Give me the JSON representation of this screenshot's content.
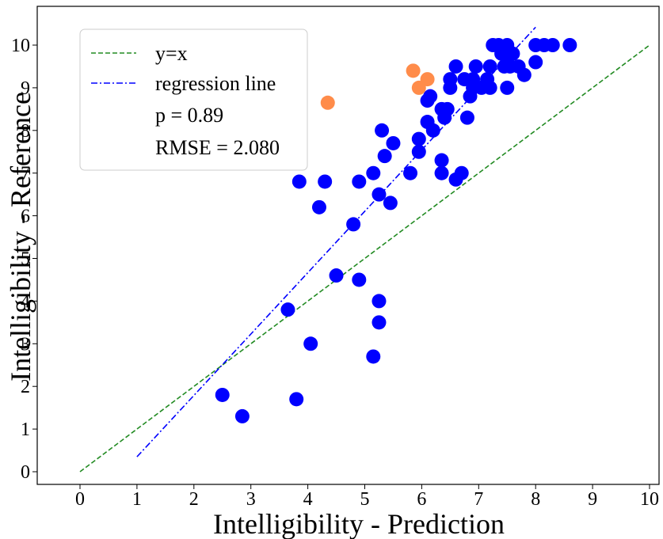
{
  "chart_data": {
    "type": "scatter",
    "xlabel": "Intelligibility - Prediction",
    "ylabel": "Intelligibility - Reference",
    "xlim": [
      0,
      10
    ],
    "ylim": [
      0,
      10
    ],
    "xticks": [
      "0",
      "1",
      "2",
      "3",
      "4",
      "5",
      "6",
      "7",
      "8",
      "9",
      "10"
    ],
    "yticks": [
      "0",
      "1",
      "2",
      "3",
      "4",
      "5",
      "6",
      "7",
      "8",
      "9",
      "10"
    ],
    "grid": false,
    "legend_position": "top-left",
    "legend": [
      {
        "label": "y=x",
        "style": "dashed",
        "color": "#228B22"
      },
      {
        "label": "regression line",
        "style": "dashdot",
        "color": "#0000FF"
      },
      {
        "label": "p = 0.89"
      },
      {
        "label": "RMSE = 2.080"
      }
    ],
    "lines": [
      {
        "label": "y=x",
        "color": "#228B22",
        "style": "dashed",
        "x": [
          0,
          10
        ],
        "y": [
          0,
          10
        ]
      },
      {
        "label": "regression line",
        "color": "#0000FF",
        "style": "dashdot",
        "x": [
          1.0,
          8.0
        ],
        "y": [
          0.35,
          10.42
        ]
      }
    ],
    "series": [
      {
        "color": "#0000FF",
        "points": [
          [
            2.5,
            1.8
          ],
          [
            2.85,
            1.3
          ],
          [
            3.8,
            1.7
          ],
          [
            4.05,
            3.0
          ],
          [
            3.65,
            3.8
          ],
          [
            5.15,
            2.7
          ],
          [
            5.25,
            3.5
          ],
          [
            5.25,
            4.0
          ],
          [
            4.5,
            4.6
          ],
          [
            4.9,
            4.5
          ],
          [
            4.8,
            5.8
          ],
          [
            4.2,
            6.2
          ],
          [
            3.85,
            6.8
          ],
          [
            4.3,
            6.8
          ],
          [
            4.9,
            6.8
          ],
          [
            5.15,
            7.0
          ],
          [
            5.25,
            6.5
          ],
          [
            5.45,
            6.3
          ],
          [
            5.35,
            7.4
          ],
          [
            5.5,
            7.7
          ],
          [
            5.3,
            8.0
          ],
          [
            5.8,
            7.0
          ],
          [
            5.95,
            7.5
          ],
          [
            5.95,
            7.8
          ],
          [
            6.1,
            8.2
          ],
          [
            6.1,
            8.7
          ],
          [
            6.15,
            8.8
          ],
          [
            6.2,
            8.0
          ],
          [
            6.35,
            8.5
          ],
          [
            6.4,
            8.3
          ],
          [
            6.45,
            8.5
          ],
          [
            6.35,
            7.0
          ],
          [
            6.35,
            7.3
          ],
          [
            6.6,
            6.85
          ],
          [
            6.7,
            7.0
          ],
          [
            6.5,
            9.0
          ],
          [
            6.5,
            9.2
          ],
          [
            6.6,
            9.5
          ],
          [
            6.75,
            9.2
          ],
          [
            6.8,
            8.3
          ],
          [
            6.85,
            8.8
          ],
          [
            6.9,
            9.0
          ],
          [
            6.9,
            9.2
          ],
          [
            6.95,
            9.5
          ],
          [
            7.05,
            9.0
          ],
          [
            7.15,
            9.2
          ],
          [
            7.2,
            9.0
          ],
          [
            7.2,
            9.5
          ],
          [
            7.25,
            10.0
          ],
          [
            7.35,
            10.0
          ],
          [
            7.4,
            9.8
          ],
          [
            7.45,
            9.5
          ],
          [
            7.5,
            9.0
          ],
          [
            7.5,
            9.8
          ],
          [
            7.5,
            10.0
          ],
          [
            7.55,
            9.5
          ],
          [
            7.6,
            9.8
          ],
          [
            7.7,
            9.5
          ],
          [
            7.8,
            9.3
          ],
          [
            8.0,
            9.6
          ],
          [
            8.0,
            10.0
          ],
          [
            8.15,
            10.0
          ],
          [
            8.3,
            10.0
          ],
          [
            8.6,
            10.0
          ]
        ]
      },
      {
        "color": "#FF8C4A",
        "points": [
          [
            4.35,
            8.65
          ],
          [
            5.85,
            9.4
          ],
          [
            5.95,
            9.0
          ],
          [
            6.1,
            9.2
          ]
        ]
      }
    ]
  }
}
